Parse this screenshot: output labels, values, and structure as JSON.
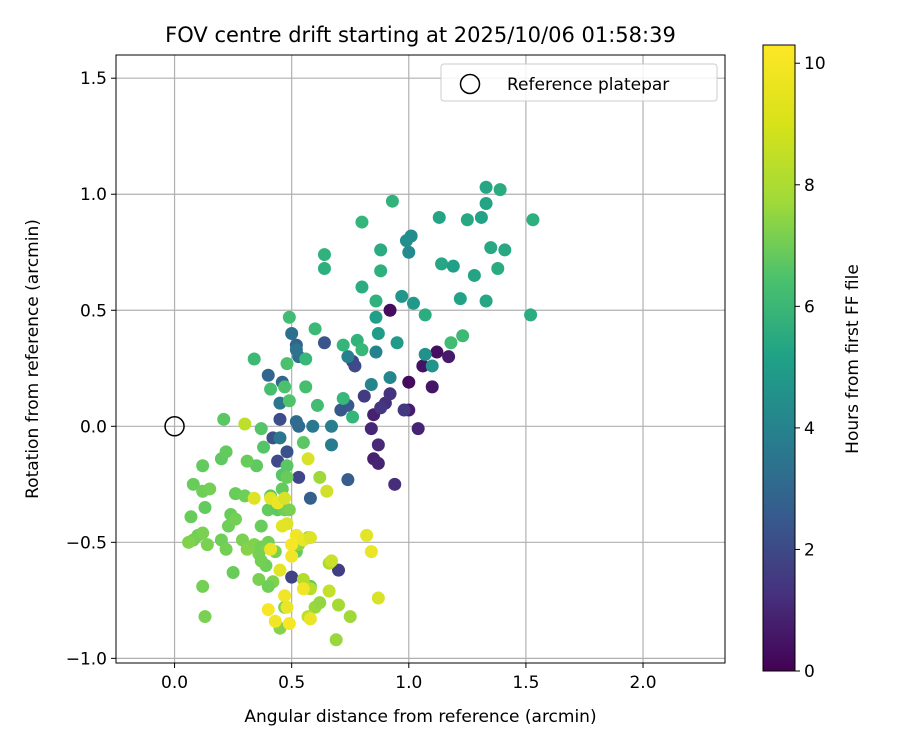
{
  "chart_data": {
    "type": "scatter",
    "title": "FOV centre drift starting at 2025/10/06 01:58:39",
    "xlabel": "Angular distance from reference (arcmin)",
    "ylabel": "Rotation from reference (arcmin)",
    "xlim": [
      -0.25,
      2.35
    ],
    "ylim": [
      -1.02,
      1.6
    ],
    "xticks": [
      0.0,
      0.5,
      1.0,
      1.5,
      2.0
    ],
    "xtick_labels": [
      "0.0",
      "0.5",
      "1.0",
      "1.5",
      "2.0"
    ],
    "yticks": [
      -1.0,
      -0.5,
      0.0,
      0.5,
      1.0,
      1.5
    ],
    "ytick_labels": [
      "−1.0",
      "−0.5",
      "0.0",
      "0.5",
      "1.0",
      "1.5"
    ],
    "grid": true,
    "legend": {
      "position": "top-right",
      "entries": [
        "Reference platepar"
      ]
    },
    "reference_point": {
      "x": 0.0,
      "y": 0.0,
      "label": "Reference platepar"
    },
    "colorbar": {
      "label": "Hours from first FF file",
      "range": [
        0,
        10.3
      ],
      "ticks": [
        0,
        2,
        4,
        6,
        8,
        10
      ],
      "tick_labels": [
        "0",
        "2",
        "4",
        "6",
        "8",
        "10"
      ],
      "colormap": "viridis"
    },
    "points": [
      {
        "x": 0.92,
        "y": 0.5,
        "h": 0.3
      },
      {
        "x": 1.12,
        "y": 0.32,
        "h": 0.4
      },
      {
        "x": 1.1,
        "y": 0.17,
        "h": 0.6
      },
      {
        "x": 1.06,
        "y": 0.26,
        "h": 0.5
      },
      {
        "x": 1.0,
        "y": 0.19,
        "h": 0.3
      },
      {
        "x": 1.17,
        "y": 0.3,
        "h": 0.7
      },
      {
        "x": 1.0,
        "y": 0.07,
        "h": 0.8
      },
      {
        "x": 1.04,
        "y": -0.01,
        "h": 1.0
      },
      {
        "x": 0.85,
        "y": 0.05,
        "h": 0.9
      },
      {
        "x": 0.84,
        "y": -0.01,
        "h": 1.1
      },
      {
        "x": 0.87,
        "y": -0.08,
        "h": 1.2
      },
      {
        "x": 0.85,
        "y": -0.14,
        "h": 0.9
      },
      {
        "x": 0.87,
        "y": -0.16,
        "h": 1.0
      },
      {
        "x": 0.94,
        "y": -0.25,
        "h": 1.3
      },
      {
        "x": 0.9,
        "y": 0.1,
        "h": 1.4
      },
      {
        "x": 0.92,
        "y": 0.14,
        "h": 1.5
      },
      {
        "x": 0.88,
        "y": 0.08,
        "h": 1.6
      },
      {
        "x": 0.98,
        "y": 0.07,
        "h": 1.7
      },
      {
        "x": 0.81,
        "y": 0.13,
        "h": 1.8
      },
      {
        "x": 0.76,
        "y": 0.28,
        "h": 2.1
      },
      {
        "x": 0.77,
        "y": 0.26,
        "h": 2.3
      },
      {
        "x": 0.7,
        "y": -0.62,
        "h": 1.9
      },
      {
        "x": 0.5,
        "y": -0.65,
        "h": 2.0
      },
      {
        "x": 0.53,
        "y": -0.22,
        "h": 2.2
      },
      {
        "x": 0.44,
        "y": -0.15,
        "h": 2.3
      },
      {
        "x": 0.42,
        "y": -0.05,
        "h": 2.5
      },
      {
        "x": 0.45,
        "y": 0.03,
        "h": 2.4
      },
      {
        "x": 0.48,
        "y": -0.11,
        "h": 2.6
      },
      {
        "x": 0.64,
        "y": 0.36,
        "h": 2.7
      },
      {
        "x": 0.74,
        "y": 0.09,
        "h": 2.9
      },
      {
        "x": 0.71,
        "y": 0.07,
        "h": 2.8
      },
      {
        "x": 0.74,
        "y": -0.23,
        "h": 3.0
      },
      {
        "x": 0.58,
        "y": -0.31,
        "h": 3.1
      },
      {
        "x": 0.52,
        "y": 0.35,
        "h": 3.2
      },
      {
        "x": 0.46,
        "y": 0.19,
        "h": 3.3
      },
      {
        "x": 0.4,
        "y": 0.22,
        "h": 3.4
      },
      {
        "x": 0.53,
        "y": 0.0,
        "h": 3.5
      },
      {
        "x": 0.52,
        "y": 0.02,
        "h": 3.6
      },
      {
        "x": 0.53,
        "y": 0.3,
        "h": 3.7
      },
      {
        "x": 0.5,
        "y": 0.4,
        "h": 3.8
      },
      {
        "x": 0.52,
        "y": 0.33,
        "h": 3.9
      },
      {
        "x": 0.45,
        "y": 0.1,
        "h": 4.0
      },
      {
        "x": 0.45,
        "y": -0.05,
        "h": 4.1
      },
      {
        "x": 0.59,
        "y": 0.0,
        "h": 4.2
      },
      {
        "x": 0.67,
        "y": -0.08,
        "h": 4.3
      },
      {
        "x": 0.67,
        "y": 0.0,
        "h": 4.4
      },
      {
        "x": 0.74,
        "y": 0.3,
        "h": 4.5
      },
      {
        "x": 0.86,
        "y": 0.32,
        "h": 4.6
      },
      {
        "x": 0.84,
        "y": 0.18,
        "h": 4.7
      },
      {
        "x": 0.92,
        "y": 0.21,
        "h": 4.8
      },
      {
        "x": 1.0,
        "y": 0.75,
        "h": 4.9
      },
      {
        "x": 1.01,
        "y": 0.82,
        "h": 5.0
      },
      {
        "x": 0.99,
        "y": 0.8,
        "h": 5.1
      },
      {
        "x": 1.07,
        "y": 0.31,
        "h": 5.2
      },
      {
        "x": 1.1,
        "y": 0.26,
        "h": 5.3
      },
      {
        "x": 0.97,
        "y": 0.56,
        "h": 5.4
      },
      {
        "x": 1.02,
        "y": 0.53,
        "h": 5.5
      },
      {
        "x": 0.95,
        "y": 0.36,
        "h": 5.6
      },
      {
        "x": 0.87,
        "y": 0.4,
        "h": 5.7
      },
      {
        "x": 0.86,
        "y": 0.47,
        "h": 5.8
      },
      {
        "x": 1.22,
        "y": 0.55,
        "h": 5.9
      },
      {
        "x": 1.28,
        "y": 0.65,
        "h": 6.0
      },
      {
        "x": 1.33,
        "y": 0.54,
        "h": 6.1
      },
      {
        "x": 1.35,
        "y": 0.77,
        "h": 6.2
      },
      {
        "x": 1.38,
        "y": 0.68,
        "h": 6.3
      },
      {
        "x": 1.41,
        "y": 0.76,
        "h": 6.2
      },
      {
        "x": 1.52,
        "y": 0.48,
        "h": 6.4
      },
      {
        "x": 1.53,
        "y": 0.89,
        "h": 6.5
      },
      {
        "x": 1.33,
        "y": 1.03,
        "h": 6.1
      },
      {
        "x": 1.39,
        "y": 1.02,
        "h": 6.3
      },
      {
        "x": 1.33,
        "y": 0.96,
        "h": 6.0
      },
      {
        "x": 1.31,
        "y": 0.9,
        "h": 5.9
      },
      {
        "x": 1.25,
        "y": 0.89,
        "h": 6.2
      },
      {
        "x": 1.13,
        "y": 0.9,
        "h": 6.0
      },
      {
        "x": 1.14,
        "y": 0.7,
        "h": 6.1
      },
      {
        "x": 1.19,
        "y": 0.69,
        "h": 5.8
      },
      {
        "x": 1.07,
        "y": 0.48,
        "h": 6.4
      },
      {
        "x": 0.88,
        "y": 0.76,
        "h": 6.3
      },
      {
        "x": 0.88,
        "y": 0.67,
        "h": 6.5
      },
      {
        "x": 0.86,
        "y": 0.54,
        "h": 6.6
      },
      {
        "x": 0.8,
        "y": 0.6,
        "h": 6.4
      },
      {
        "x": 0.93,
        "y": 0.97,
        "h": 6.7
      },
      {
        "x": 0.8,
        "y": 0.88,
        "h": 6.8
      },
      {
        "x": 0.64,
        "y": 0.74,
        "h": 6.6
      },
      {
        "x": 0.64,
        "y": 0.68,
        "h": 6.5
      },
      {
        "x": 0.78,
        "y": 0.37,
        "h": 6.7
      },
      {
        "x": 0.8,
        "y": 0.33,
        "h": 6.9
      },
      {
        "x": 0.72,
        "y": 0.35,
        "h": 6.8
      },
      {
        "x": 0.6,
        "y": 0.42,
        "h": 7.0
      },
      {
        "x": 0.56,
        "y": 0.29,
        "h": 6.9
      },
      {
        "x": 1.23,
        "y": 0.39,
        "h": 7.0
      },
      {
        "x": 1.18,
        "y": 0.36,
        "h": 7.1
      },
      {
        "x": 0.76,
        "y": 0.04,
        "h": 6.8
      },
      {
        "x": 0.72,
        "y": 0.12,
        "h": 6.9
      },
      {
        "x": 0.61,
        "y": 0.09,
        "h": 7.1
      },
      {
        "x": 0.56,
        "y": 0.17,
        "h": 7.2
      },
      {
        "x": 0.48,
        "y": 0.27,
        "h": 7.3
      },
      {
        "x": 0.49,
        "y": 0.47,
        "h": 7.1
      },
      {
        "x": 0.34,
        "y": 0.29,
        "h": 7.0
      },
      {
        "x": 0.41,
        "y": 0.16,
        "h": 7.2
      },
      {
        "x": 0.47,
        "y": 0.17,
        "h": 7.3
      },
      {
        "x": 0.49,
        "y": 0.11,
        "h": 7.4
      },
      {
        "x": 0.37,
        "y": -0.01,
        "h": 7.5
      },
      {
        "x": 0.55,
        "y": -0.07,
        "h": 7.6
      },
      {
        "x": 0.58,
        "y": -0.69,
        "h": 7.7
      },
      {
        "x": 0.52,
        "y": -0.54,
        "h": 7.8
      },
      {
        "x": 0.46,
        "y": -0.21,
        "h": 7.5
      },
      {
        "x": 0.48,
        "y": -0.17,
        "h": 7.6
      },
      {
        "x": 0.38,
        "y": -0.09,
        "h": 7.5
      },
      {
        "x": 0.35,
        "y": -0.17,
        "h": 7.7
      },
      {
        "x": 0.31,
        "y": -0.15,
        "h": 7.9
      },
      {
        "x": 0.21,
        "y": 0.03,
        "h": 7.6
      },
      {
        "x": 0.2,
        "y": -0.14,
        "h": 7.7
      },
      {
        "x": 0.22,
        "y": -0.11,
        "h": 7.8
      },
      {
        "x": 0.26,
        "y": -0.29,
        "h": 7.9
      },
      {
        "x": 0.3,
        "y": -0.3,
        "h": 8.0
      },
      {
        "x": 0.12,
        "y": -0.17,
        "h": 7.8
      },
      {
        "x": 0.08,
        "y": -0.25,
        "h": 7.9
      },
      {
        "x": 0.12,
        "y": -0.28,
        "h": 8.0
      },
      {
        "x": 0.15,
        "y": -0.27,
        "h": 8.1
      },
      {
        "x": 0.13,
        "y": -0.35,
        "h": 7.8
      },
      {
        "x": 0.07,
        "y": -0.39,
        "h": 7.9
      },
      {
        "x": 0.1,
        "y": -0.47,
        "h": 8.0
      },
      {
        "x": 0.12,
        "y": -0.46,
        "h": 8.2
      },
      {
        "x": 0.08,
        "y": -0.49,
        "h": 8.1
      },
      {
        "x": 0.06,
        "y": -0.5,
        "h": 8.3
      },
      {
        "x": 0.14,
        "y": -0.51,
        "h": 8.2
      },
      {
        "x": 0.2,
        "y": -0.49,
        "h": 8.0
      },
      {
        "x": 0.22,
        "y": -0.53,
        "h": 8.1
      },
      {
        "x": 0.23,
        "y": -0.43,
        "h": 8.0
      },
      {
        "x": 0.24,
        "y": -0.38,
        "h": 7.9
      },
      {
        "x": 0.26,
        "y": -0.4,
        "h": 8.1
      },
      {
        "x": 0.29,
        "y": -0.49,
        "h": 8.2
      },
      {
        "x": 0.31,
        "y": -0.53,
        "h": 8.4
      },
      {
        "x": 0.34,
        "y": -0.51,
        "h": 8.3
      },
      {
        "x": 0.36,
        "y": -0.55,
        "h": 8.2
      },
      {
        "x": 0.37,
        "y": -0.52,
        "h": 8.1
      },
      {
        "x": 0.37,
        "y": -0.43,
        "h": 7.9
      },
      {
        "x": 0.4,
        "y": -0.36,
        "h": 7.8
      },
      {
        "x": 0.44,
        "y": -0.36,
        "h": 7.7
      },
      {
        "x": 0.41,
        "y": -0.3,
        "h": 7.6
      },
      {
        "x": 0.46,
        "y": -0.27,
        "h": 7.8
      },
      {
        "x": 0.48,
        "y": -0.22,
        "h": 7.9
      },
      {
        "x": 0.47,
        "y": -0.36,
        "h": 8.0
      },
      {
        "x": 0.49,
        "y": -0.36,
        "h": 8.2
      },
      {
        "x": 0.4,
        "y": -0.52,
        "h": 8.3
      },
      {
        "x": 0.4,
        "y": -0.5,
        "h": 8.1
      },
      {
        "x": 0.43,
        "y": -0.54,
        "h": 8.2
      },
      {
        "x": 0.39,
        "y": -0.6,
        "h": 8.0
      },
      {
        "x": 0.37,
        "y": -0.58,
        "h": 8.1
      },
      {
        "x": 0.36,
        "y": -0.66,
        "h": 8.2
      },
      {
        "x": 0.42,
        "y": -0.67,
        "h": 8.3
      },
      {
        "x": 0.4,
        "y": -0.69,
        "h": 8.0
      },
      {
        "x": 0.25,
        "y": -0.63,
        "h": 7.9
      },
      {
        "x": 0.12,
        "y": -0.69,
        "h": 8.1
      },
      {
        "x": 0.13,
        "y": -0.82,
        "h": 8.2
      },
      {
        "x": 0.45,
        "y": -0.87,
        "h": 8.4
      },
      {
        "x": 0.47,
        "y": -0.78,
        "h": 8.3
      },
      {
        "x": 0.53,
        "y": -0.51,
        "h": 8.5
      },
      {
        "x": 0.57,
        "y": -0.48,
        "h": 8.6
      },
      {
        "x": 0.6,
        "y": -0.78,
        "h": 8.7
      },
      {
        "x": 0.62,
        "y": -0.76,
        "h": 8.6
      },
      {
        "x": 0.69,
        "y": -0.92,
        "h": 8.7
      },
      {
        "x": 0.75,
        "y": -0.82,
        "h": 8.8
      },
      {
        "x": 0.7,
        "y": -0.77,
        "h": 8.9
      },
      {
        "x": 0.66,
        "y": -0.59,
        "h": 9.0
      },
      {
        "x": 0.55,
        "y": -0.66,
        "h": 9.1
      },
      {
        "x": 0.58,
        "y": -0.7,
        "h": 9.2
      },
      {
        "x": 0.57,
        "y": -0.82,
        "h": 9.3
      },
      {
        "x": 0.66,
        "y": -0.71,
        "h": 9.4
      },
      {
        "x": 0.67,
        "y": -0.58,
        "h": 9.5
      },
      {
        "x": 0.62,
        "y": -0.22,
        "h": 8.8
      },
      {
        "x": 0.65,
        "y": -0.28,
        "h": 9.6
      },
      {
        "x": 0.57,
        "y": -0.14,
        "h": 9.7
      },
      {
        "x": 0.3,
        "y": 0.01,
        "h": 9.3
      },
      {
        "x": 0.34,
        "y": -0.31,
        "h": 9.8
      },
      {
        "x": 0.41,
        "y": -0.31,
        "h": 9.9
      },
      {
        "x": 0.44,
        "y": -0.33,
        "h": 10.0
      },
      {
        "x": 0.47,
        "y": -0.31,
        "h": 9.7
      },
      {
        "x": 0.48,
        "y": -0.42,
        "h": 9.8
      },
      {
        "x": 0.46,
        "y": -0.43,
        "h": 9.9
      },
      {
        "x": 0.52,
        "y": -0.47,
        "h": 10.1
      },
      {
        "x": 0.55,
        "y": -0.49,
        "h": 10.0
      },
      {
        "x": 0.58,
        "y": -0.48,
        "h": 9.8
      },
      {
        "x": 0.5,
        "y": -0.51,
        "h": 10.2
      },
      {
        "x": 0.5,
        "y": -0.56,
        "h": 10.1
      },
      {
        "x": 0.41,
        "y": -0.53,
        "h": 10.0
      },
      {
        "x": 0.45,
        "y": -0.62,
        "h": 9.9
      },
      {
        "x": 0.47,
        "y": -0.73,
        "h": 10.1
      },
      {
        "x": 0.48,
        "y": -0.78,
        "h": 10.0
      },
      {
        "x": 0.4,
        "y": -0.79,
        "h": 10.2
      },
      {
        "x": 0.43,
        "y": -0.84,
        "h": 10.1
      },
      {
        "x": 0.49,
        "y": -0.85,
        "h": 10.2
      },
      {
        "x": 0.58,
        "y": -0.83,
        "h": 10.0
      },
      {
        "x": 0.55,
        "y": -0.7,
        "h": 10.1
      },
      {
        "x": 0.82,
        "y": -0.47,
        "h": 9.9
      },
      {
        "x": 0.84,
        "y": -0.54,
        "h": 10.0
      },
      {
        "x": 0.87,
        "y": -0.74,
        "h": 9.7
      }
    ]
  }
}
